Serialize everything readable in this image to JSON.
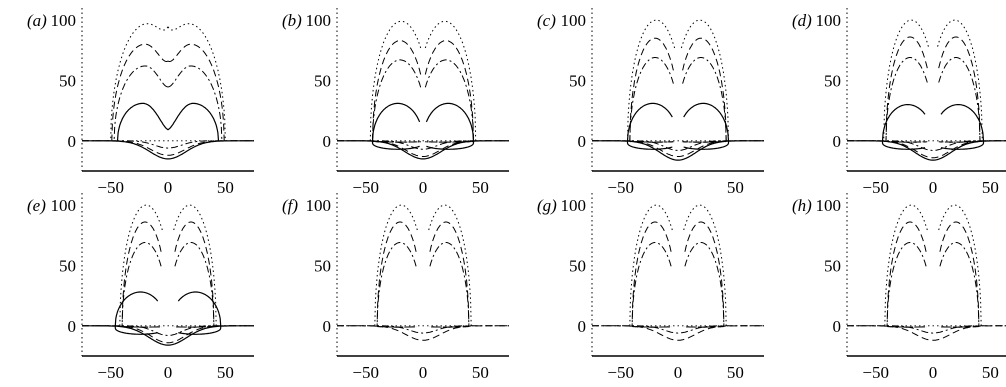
{
  "chart_data": {
    "type": "line",
    "grid": false,
    "legend": "none",
    "xticks": [
      -50,
      0,
      50
    ],
    "yticks": [
      0,
      50,
      100
    ],
    "xlim": [
      -75,
      75
    ],
    "ylim": [
      -25,
      110
    ],
    "panels": [
      {
        "id": "a",
        "label": "(a)",
        "xtick_labels": [
          "−50",
          "0",
          "50"
        ],
        "ytick_labels": [
          "0",
          "50",
          "100"
        ],
        "curves": [
          {
            "style": "solid",
            "type": "lobes",
            "peak": 31,
            "center": 22,
            "halfwidth": 22,
            "gap": 0,
            "notch": 10
          },
          {
            "style": "dash",
            "type": "lobes",
            "peak": 80,
            "center": 20,
            "halfwidth": 29,
            "gap": 0,
            "notch": 67
          },
          {
            "style": "dashdot",
            "type": "lobes",
            "peak": 62,
            "center": 20,
            "halfwidth": 27,
            "gap": 0,
            "notch": 45
          },
          {
            "style": "dot",
            "type": "lobes",
            "peak": 97,
            "center": 18,
            "halfwidth": 32,
            "gap": 0,
            "notch": 96
          },
          {
            "style": "solid",
            "type": "trough",
            "depth": 15,
            "width": 40
          },
          {
            "style": "dash",
            "type": "trough",
            "depth": 12,
            "width": 38
          },
          {
            "style": "dashdot",
            "type": "trough",
            "depth": 6,
            "width": 30
          }
        ]
      },
      {
        "id": "b",
        "label": "(b)",
        "xtick_labels": [
          "−50",
          "0",
          "50"
        ],
        "ytick_labels": [
          "0",
          "50",
          "100"
        ],
        "curves": [
          {
            "style": "solid",
            "type": "lobes",
            "peak": 31,
            "center": 22,
            "halfwidth": 22,
            "gap": 3,
            "notch": -20
          },
          {
            "style": "dash",
            "type": "lobes",
            "peak": 83,
            "center": 20,
            "halfwidth": 24,
            "gap": 2,
            "notch": 45
          },
          {
            "style": "dashdot",
            "type": "lobes",
            "peak": 67,
            "center": 20,
            "halfwidth": 24,
            "gap": 2,
            "notch": 30
          },
          {
            "style": "dot",
            "type": "lobes",
            "peak": 99,
            "center": 19,
            "halfwidth": 27,
            "gap": 2,
            "notch": 82
          },
          {
            "style": "solid",
            "type": "trough",
            "depth": 15,
            "width": 40
          },
          {
            "style": "dash",
            "type": "trough",
            "depth": 13,
            "width": 38
          },
          {
            "style": "dashdot",
            "type": "trough",
            "depth": 7,
            "width": 30
          }
        ]
      },
      {
        "id": "c",
        "label": "(c)",
        "xtick_labels": [
          "−50",
          "0",
          "50"
        ],
        "ytick_labels": [
          "0",
          "50",
          "100"
        ],
        "curves": [
          {
            "style": "solid",
            "type": "lobes",
            "peak": 31,
            "center": 22,
            "halfwidth": 22,
            "gap": 5,
            "notch": -20
          },
          {
            "style": "dash",
            "type": "lobes",
            "peak": 85,
            "center": 20,
            "halfwidth": 22,
            "gap": 4,
            "notch": 35
          },
          {
            "style": "dashdot",
            "type": "lobes",
            "peak": 69,
            "center": 20,
            "halfwidth": 22,
            "gap": 4,
            "notch": 22
          },
          {
            "style": "dot",
            "type": "lobes",
            "peak": 100,
            "center": 19,
            "halfwidth": 25,
            "gap": 3,
            "notch": 60
          },
          {
            "style": "solid",
            "type": "trough",
            "depth": 16,
            "width": 40
          },
          {
            "style": "dash",
            "type": "trough",
            "depth": 13,
            "width": 38
          },
          {
            "style": "dashdot",
            "type": "trough",
            "depth": 8,
            "width": 30
          }
        ]
      },
      {
        "id": "d",
        "label": "(d)",
        "xtick_labels": [
          "−50",
          "0",
          "50"
        ],
        "ytick_labels": [
          "0",
          "50",
          "100"
        ],
        "curves": [
          {
            "style": "solid",
            "type": "lobes",
            "peak": 30,
            "center": 22,
            "halfwidth": 22,
            "gap": 7,
            "notch": -20
          },
          {
            "style": "dash",
            "type": "lobes",
            "peak": 86,
            "center": 20,
            "halfwidth": 21,
            "gap": 5,
            "notch": 25
          },
          {
            "style": "dashdot",
            "type": "lobes",
            "peak": 69,
            "center": 20,
            "halfwidth": 21,
            "gap": 5,
            "notch": 15
          },
          {
            "style": "dot",
            "type": "lobes",
            "peak": 100,
            "center": 19,
            "halfwidth": 24,
            "gap": 4,
            "notch": 45
          },
          {
            "style": "solid",
            "type": "trough",
            "depth": 16,
            "width": 40
          },
          {
            "style": "dash",
            "type": "trough",
            "depth": 14,
            "width": 38
          },
          {
            "style": "dashdot",
            "type": "trough",
            "depth": 8,
            "width": 30
          }
        ]
      },
      {
        "id": "e",
        "label": "(e)",
        "xtick_labels": [
          "−50",
          "0",
          "50"
        ],
        "ytick_labels": [
          "0",
          "50",
          "100"
        ],
        "curves": [
          {
            "style": "solid",
            "type": "lobes",
            "peak": 28,
            "center": 24,
            "halfwidth": 22,
            "gap": 9,
            "notch": -20
          },
          {
            "style": "dash",
            "type": "lobes",
            "peak": 86,
            "center": 20,
            "halfwidth": 20,
            "gap": 6,
            "notch": 20
          },
          {
            "style": "dashdot",
            "type": "lobes",
            "peak": 69,
            "center": 20,
            "halfwidth": 20,
            "gap": 6,
            "notch": 10
          },
          {
            "style": "dot",
            "type": "lobes",
            "peak": 100,
            "center": 19,
            "halfwidth": 23,
            "gap": 5,
            "notch": 40
          },
          {
            "style": "solid",
            "type": "trough",
            "depth": 16,
            "width": 42
          },
          {
            "style": "dash",
            "type": "trough",
            "depth": 14,
            "width": 38
          },
          {
            "style": "dashdot",
            "type": "trough",
            "depth": 8,
            "width": 30
          }
        ]
      },
      {
        "id": "f",
        "label": "(f)",
        "xtick_labels": [
          "−50",
          "0",
          "50"
        ],
        "ytick_labels": [
          "0",
          "50",
          "100"
        ],
        "curves": [
          {
            "style": "dash",
            "type": "lobes",
            "peak": 86,
            "center": 20,
            "halfwidth": 20,
            "gap": 6,
            "notch": 20
          },
          {
            "style": "dashdot",
            "type": "lobes",
            "peak": 69,
            "center": 20,
            "halfwidth": 20,
            "gap": 6,
            "notch": 10
          },
          {
            "style": "dot",
            "type": "lobes",
            "peak": 100,
            "center": 19,
            "halfwidth": 23,
            "gap": 5,
            "notch": 40
          },
          {
            "style": "dash",
            "type": "trough",
            "depth": 12,
            "width": 38
          },
          {
            "style": "dashdot",
            "type": "trough",
            "depth": 6,
            "width": 30
          }
        ]
      },
      {
        "id": "g",
        "label": "(g)",
        "xtick_labels": [
          "−50",
          "0",
          "50"
        ],
        "ytick_labels": [
          "0",
          "50",
          "100"
        ],
        "curves": [
          {
            "style": "dash",
            "type": "lobes",
            "peak": 86,
            "center": 20,
            "halfwidth": 20,
            "gap": 6,
            "notch": 20
          },
          {
            "style": "dashdot",
            "type": "lobes",
            "peak": 69,
            "center": 20,
            "halfwidth": 20,
            "gap": 6,
            "notch": 10
          },
          {
            "style": "dot",
            "type": "lobes",
            "peak": 100,
            "center": 19,
            "halfwidth": 23,
            "gap": 5,
            "notch": 40
          },
          {
            "style": "dash",
            "type": "trough",
            "depth": 12,
            "width": 38
          },
          {
            "style": "dashdot",
            "type": "trough",
            "depth": 6,
            "width": 30
          }
        ]
      },
      {
        "id": "h",
        "label": "(h)",
        "xtick_labels": [
          "−50",
          "0",
          "50"
        ],
        "ytick_labels": [
          "0",
          "50",
          "100"
        ],
        "curves": [
          {
            "style": "dash",
            "type": "lobes",
            "peak": 86,
            "center": 20,
            "halfwidth": 20,
            "gap": 6,
            "notch": 20
          },
          {
            "style": "dashdot",
            "type": "lobes",
            "peak": 69,
            "center": 20,
            "halfwidth": 20,
            "gap": 6,
            "notch": 10
          },
          {
            "style": "dot",
            "type": "lobes",
            "peak": 100,
            "center": 19,
            "halfwidth": 23,
            "gap": 5,
            "notch": 40
          },
          {
            "style": "dash",
            "type": "trough",
            "depth": 12,
            "width": 38
          },
          {
            "style": "dashdot",
            "type": "trough",
            "depth": 6,
            "width": 30
          }
        ]
      }
    ]
  }
}
